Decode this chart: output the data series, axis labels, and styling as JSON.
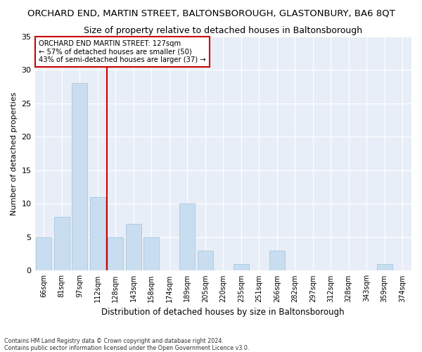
{
  "title": "ORCHARD END, MARTIN STREET, BALTONSBOROUGH, GLASTONBURY, BA6 8QT",
  "subtitle": "Size of property relative to detached houses in Baltonsborough",
  "xlabel": "Distribution of detached houses by size in Baltonsborough",
  "ylabel": "Number of detached properties",
  "categories": [
    "66sqm",
    "81sqm",
    "97sqm",
    "112sqm",
    "128sqm",
    "143sqm",
    "158sqm",
    "174sqm",
    "189sqm",
    "205sqm",
    "220sqm",
    "235sqm",
    "251sqm",
    "266sqm",
    "282sqm",
    "297sqm",
    "312sqm",
    "328sqm",
    "343sqm",
    "359sqm",
    "374sqm"
  ],
  "values": [
    5,
    8,
    28,
    11,
    5,
    7,
    5,
    0,
    10,
    3,
    0,
    1,
    0,
    3,
    0,
    0,
    0,
    0,
    0,
    1,
    0
  ],
  "bar_color": "#c9ddf0",
  "bar_edge_color": "#a0bfd8",
  "annotation_title": "ORCHARD END MARTIN STREET: 127sqm",
  "annotation_line1": "← 57% of detached houses are smaller (50)",
  "annotation_line2": "43% of semi-detached houses are larger (37) →",
  "annotation_box_facecolor": "#ffffff",
  "annotation_box_edgecolor": "#cc0000",
  "vline_color": "#cc0000",
  "ylim": [
    0,
    35
  ],
  "yticks": [
    0,
    5,
    10,
    15,
    20,
    25,
    30,
    35
  ],
  "title_fontsize": 9.5,
  "subtitle_fontsize": 9,
  "xlabel_fontsize": 8.5,
  "ylabel_fontsize": 8,
  "tick_fontsize": 7,
  "footer_line1": "Contains HM Land Registry data © Crown copyright and database right 2024.",
  "footer_line2": "Contains public sector information licensed under the Open Government Licence v3.0.",
  "bg_color": "#ffffff",
  "plot_bg_color": "#e8eef7",
  "grid_color": "#ffffff"
}
